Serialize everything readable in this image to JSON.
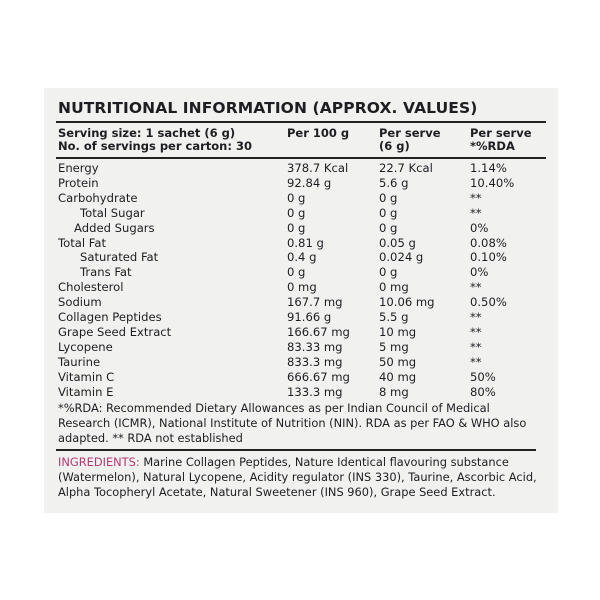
{
  "title": "NUTRITIONAL INFORMATION (APPROX. VALUES)",
  "header": {
    "serving_size": "Serving size: 1 sachet (6 g)",
    "servings_per_carton": "No. of servings per carton: 30",
    "col_per100": "Per 100 g",
    "col_perserve_1": "Per serve",
    "col_perserve_2": "(6 g)",
    "col_rda_1": "Per serve",
    "col_rda_2": "*%RDA"
  },
  "rows": [
    {
      "name": "Energy",
      "per100": "378.7 Kcal",
      "perserve": "22.7 Kcal",
      "rda": "1.14%",
      "indent": 0
    },
    {
      "name": "Protein",
      "per100": "92.84 g",
      "perserve": "5.6 g",
      "rda": "10.40%",
      "indent": 0
    },
    {
      "name": "Carbohydrate",
      "per100": "0 g",
      "perserve": "0 g",
      "rda": "**",
      "indent": 0
    },
    {
      "name": "Total Sugar",
      "per100": "0 g",
      "perserve": "0 g",
      "rda": "**",
      "indent": 2
    },
    {
      "name": "Added Sugars",
      "per100": "0 g",
      "perserve": "0 g",
      "rda": "0%",
      "indent": 1
    },
    {
      "name": "Total Fat",
      "per100": "0.81 g",
      "perserve": "0.05 g",
      "rda": "0.08%",
      "indent": 0
    },
    {
      "name": "Saturated Fat",
      "per100": "0.4 g",
      "perserve": "0.024 g",
      "rda": "0.10%",
      "indent": 2
    },
    {
      "name": "Trans Fat",
      "per100": "0 g",
      "perserve": "0 g",
      "rda": "0%",
      "indent": 2
    },
    {
      "name": "Cholesterol",
      "per100": "0 mg",
      "perserve": "0 mg",
      "rda": "**",
      "indent": 0
    },
    {
      "name": "Sodium",
      "per100": "167.7 mg",
      "perserve": "10.06 mg",
      "rda": "0.50%",
      "indent": 0
    },
    {
      "name": "Collagen Peptides",
      "per100": "91.66 g",
      "perserve": "5.5 g",
      "rda": "**",
      "indent": 0
    },
    {
      "name": "Grape Seed Extract",
      "per100": "166.67 mg",
      "perserve": "10 mg",
      "rda": "**",
      "indent": 0
    },
    {
      "name": "Lycopene",
      "per100": "83.33 mg",
      "perserve": "5 mg",
      "rda": "**",
      "indent": 0
    },
    {
      "name": "Taurine",
      "per100": "833.3 mg",
      "perserve": "50 mg",
      "rda": "**",
      "indent": 0
    },
    {
      "name": "Vitamin C",
      "per100": "666.67 mg",
      "perserve": "40 mg",
      "rda": "50%",
      "indent": 0
    },
    {
      "name": "Vitamin E",
      "per100": "133.3 mg",
      "perserve": "8 mg",
      "rda": "80%",
      "indent": 0
    }
  ],
  "footnote": "*%RDA: Recommended Dietary Allowances as per Indian Council of Medical Research (ICMR), National Institute of Nutrition (NIN). RDA as per FAO & WHO also adapted. ** RDA not established",
  "ingredients": {
    "label": "INGREDIENTS:",
    "text": " Marine Collagen Peptides, Nature Identical flavouring substance (Watermelon), Natural Lycopene, Acidity regulator (INS 330), Taurine, Ascorbic Acid, Alpha Tocopheryl Acetate, Natural Sweetener (INS 960), Grape Seed Extract.",
    "label_color": "#b23a72"
  }
}
